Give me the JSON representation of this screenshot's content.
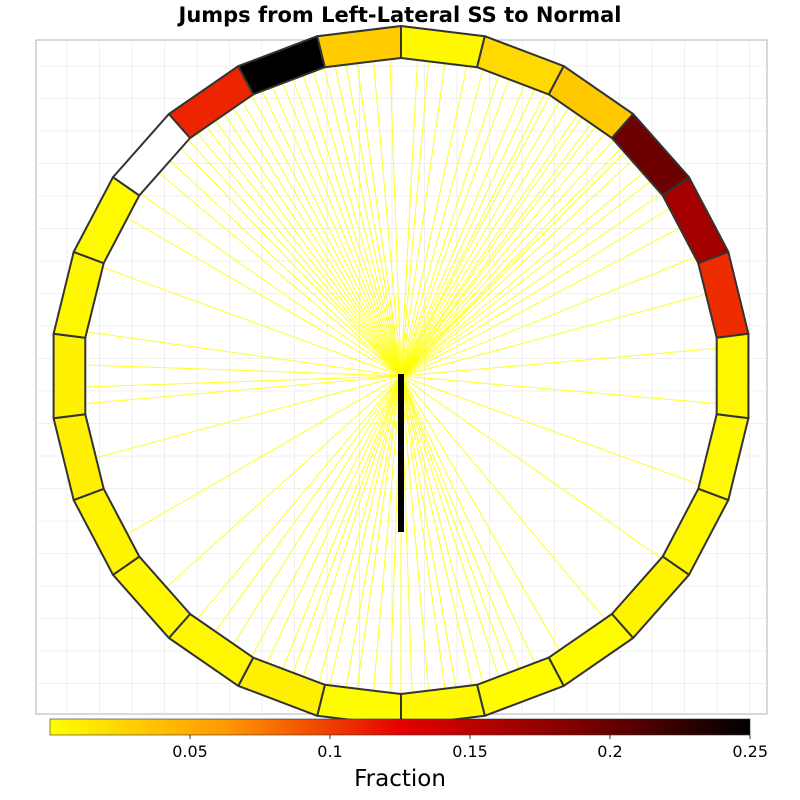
{
  "chart_data": {
    "type": "radial-heatmap",
    "title": "Jumps from Left-Lateral SS to Normal",
    "segments": 26,
    "segment_fraction": [
      0.004,
      0.023,
      0.033,
      0.197,
      0.165,
      0.107,
      0.005,
      0.003,
      0.005,
      0.007,
      0.002,
      0.002,
      0.004,
      0.002,
      0.009,
      0.005,
      0.004,
      0.007,
      0.01,
      0.008,
      0.005,
      0.003,
      0.0,
      0.11,
      0.255,
      0.031
    ],
    "segment_order": "clockwise from north",
    "center_bar": {
      "direction": "south",
      "color": "#000000"
    },
    "jump_line_angles_deg": [
      355,
      358,
      3,
      5,
      8,
      12,
      15,
      18,
      20,
      23,
      25,
      27,
      28,
      30,
      32,
      34,
      35,
      37,
      38,
      40,
      42,
      44,
      45,
      47,
      50,
      52,
      55,
      58,
      62,
      68,
      75,
      85,
      95,
      110,
      125,
      140,
      150,
      155,
      158,
      160,
      162,
      165,
      167,
      170,
      172,
      175,
      178,
      180,
      182,
      185,
      188,
      190,
      193,
      195,
      198,
      200,
      202,
      205,
      208,
      212,
      216,
      220,
      228,
      240,
      255,
      265,
      268,
      272,
      278,
      290,
      300,
      305,
      310,
      313,
      316,
      318,
      320,
      322,
      324,
      326,
      328,
      330,
      332,
      334,
      336,
      338,
      340,
      342,
      344,
      346,
      348,
      350,
      352
    ],
    "colorbar": {
      "label": "Fraction",
      "min": 0,
      "max": 0.25,
      "ticks": [
        "0.05",
        "0.1",
        "0.15",
        "0.2",
        "0.25"
      ],
      "tick_values": [
        0.05,
        0.1,
        0.15,
        0.2,
        0.25
      ],
      "colors": [
        "#ffff00",
        "#ff9900",
        "#e60000",
        "#800000",
        "#000000"
      ]
    },
    "grid": true
  }
}
